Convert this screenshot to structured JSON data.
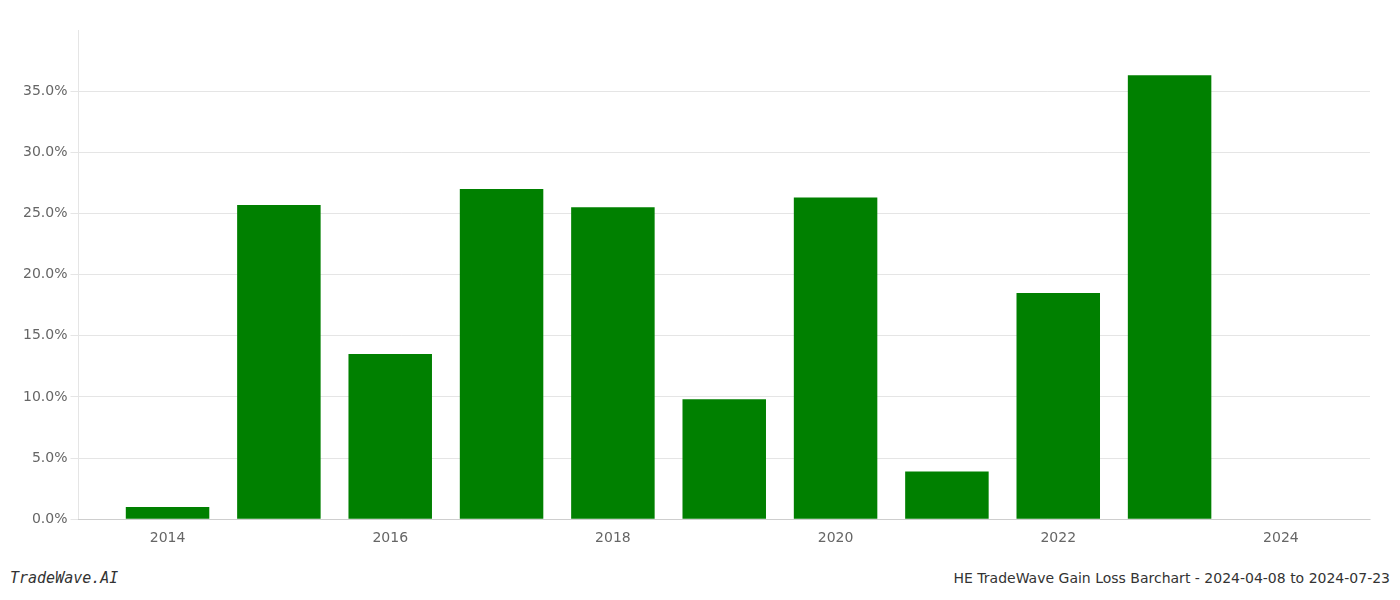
{
  "chart_data": {
    "type": "bar",
    "title": "HE TradeWave Gain Loss Barchart - 2024-04-08 to 2024-07-23",
    "annotations": [
      "TradeWave.AI"
    ],
    "x": [
      2014,
      2015,
      2016,
      2017,
      2018,
      2019,
      2020,
      2021,
      2022,
      2023,
      2024
    ],
    "values": [
      0.01,
      0.257,
      0.135,
      0.27,
      0.255,
      0.098,
      0.263,
      0.039,
      0.185,
      0.363,
      0.0
    ],
    "color": "#008000",
    "xlim": [
      2013.2,
      2024.8
    ],
    "xticks": [
      2014,
      2016,
      2018,
      2020,
      2022,
      2024
    ],
    "ylim": [
      0.0,
      0.4
    ],
    "yticks": [
      {
        "value": 0.0,
        "label": "0.0%"
      },
      {
        "value": 0.05,
        "label": "5.0%"
      },
      {
        "value": 0.1,
        "label": "10.0%"
      },
      {
        "value": 0.15,
        "label": "15.0%"
      },
      {
        "value": 0.2,
        "label": "20.0%"
      },
      {
        "value": 0.25,
        "label": "25.0%"
      },
      {
        "value": 0.3,
        "label": "30.0%"
      },
      {
        "value": 0.35,
        "label": "35.0%"
      }
    ],
    "grid": "y"
  }
}
